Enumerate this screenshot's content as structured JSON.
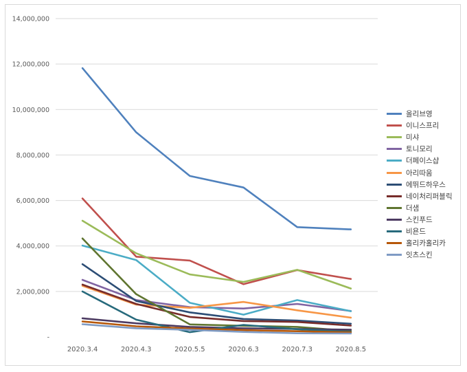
{
  "chart_data": {
    "type": "line",
    "title": "",
    "xlabel": "",
    "ylabel": "",
    "categories": [
      "2020.3.4",
      "2020.4.3",
      "2020.5.5",
      "2020.6.3",
      "2020.7.3",
      "2020.8.5"
    ],
    "ylim": [
      0,
      14000000
    ],
    "yticks": [
      "-",
      "2,000,000",
      "4,000,000",
      "6,000,000",
      "8,000,000",
      "10,000,000",
      "12,000,000",
      "14,000,000"
    ],
    "grid": true,
    "legend_position": "right",
    "series": [
      {
        "name": "올리브영",
        "color": "#4f81bd",
        "values": [
          11820000,
          9000000,
          7080000,
          6570000,
          4830000,
          4730000
        ]
      },
      {
        "name": "이니스프리",
        "color": "#c0504d",
        "values": [
          6090000,
          3530000,
          3360000,
          2320000,
          2940000,
          2550000
        ]
      },
      {
        "name": "미샤",
        "color": "#9bbb59",
        "values": [
          5110000,
          3680000,
          2750000,
          2420000,
          2950000,
          2130000
        ]
      },
      {
        "name": "토니모리",
        "color": "#8064a2",
        "values": [
          2510000,
          1620000,
          1310000,
          1250000,
          1450000,
          1140000
        ]
      },
      {
        "name": "더페이스샵",
        "color": "#4bacc6",
        "values": [
          4020000,
          3380000,
          1500000,
          980000,
          1620000,
          1130000
        ]
      },
      {
        "name": "아리따움",
        "color": "#f79646",
        "values": [
          2250000,
          1420000,
          1280000,
          1540000,
          1170000,
          850000
        ]
      },
      {
        "name": "에뛰드하우스",
        "color": "#2c4d75",
        "values": [
          3200000,
          1580000,
          1080000,
          790000,
          720000,
          580000
        ]
      },
      {
        "name": "네이처리퍼블릭",
        "color": "#772c2a",
        "values": [
          2300000,
          1450000,
          880000,
          700000,
          660000,
          500000
        ]
      },
      {
        "name": "더샘",
        "color": "#5f7530",
        "values": [
          4330000,
          1880000,
          550000,
          490000,
          440000,
          260000
        ]
      },
      {
        "name": "스킨푸드",
        "color": "#4d3b62",
        "values": [
          820000,
          600000,
          440000,
          380000,
          350000,
          320000
        ]
      },
      {
        "name": "비욘드",
        "color": "#276a7c",
        "values": [
          2000000,
          760000,
          210000,
          530000,
          340000,
          220000
        ]
      },
      {
        "name": "홀리카홀리카",
        "color": "#b65708",
        "values": [
          680000,
          470000,
          370000,
          300000,
          250000,
          200000
        ]
      },
      {
        "name": "잇츠스킨",
        "color": "#7f9bc4",
        "values": [
          560000,
          380000,
          310000,
          220000,
          160000,
          150000
        ]
      }
    ]
  }
}
